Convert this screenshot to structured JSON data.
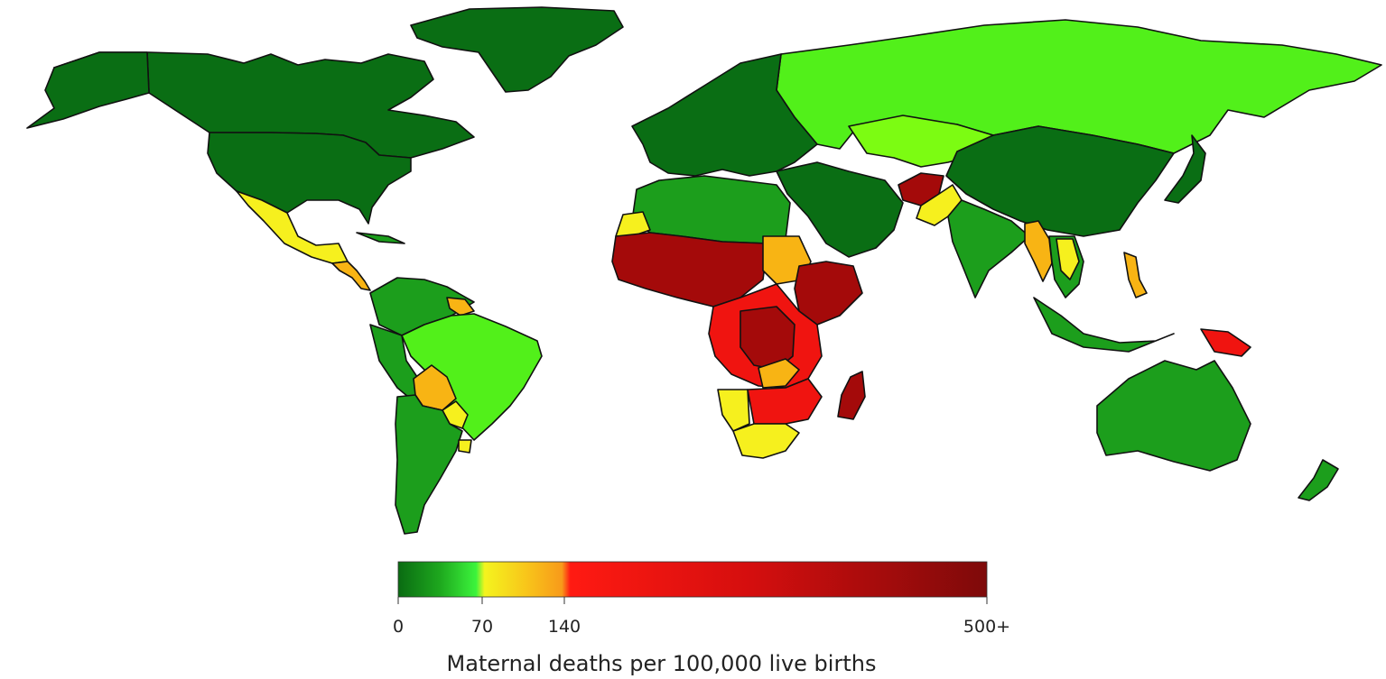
{
  "legend": {
    "title": "Maternal deaths per 100,000 live births",
    "ticks": [
      {
        "value": 0,
        "label": "0"
      },
      {
        "value": 70,
        "label": "70"
      },
      {
        "value": 140,
        "label": "140"
      },
      {
        "value": 500,
        "label": "500+"
      }
    ],
    "color_stops": [
      {
        "value": 0,
        "color": "#0a6b12"
      },
      {
        "value": 35,
        "color": "#1ea81e"
      },
      {
        "value": 65,
        "color": "#3cf43c"
      },
      {
        "value": 72,
        "color": "#f4f41e"
      },
      {
        "value": 110,
        "color": "#f8c21a"
      },
      {
        "value": 138,
        "color": "#f89a1a"
      },
      {
        "value": 145,
        "color": "#ff1a12"
      },
      {
        "value": 300,
        "color": "#d40e0e"
      },
      {
        "value": 500,
        "color": "#7e0a0a"
      }
    ]
  },
  "colors": {
    "dark_green": "#0a6e14",
    "green": "#1c9e1c",
    "bright_green": "#52f01a",
    "lime": "#7cfc12",
    "yellow": "#f6f01e",
    "orange": "#f8b414",
    "red": "#f01410",
    "dark_red": "#a40a0a"
  }
}
